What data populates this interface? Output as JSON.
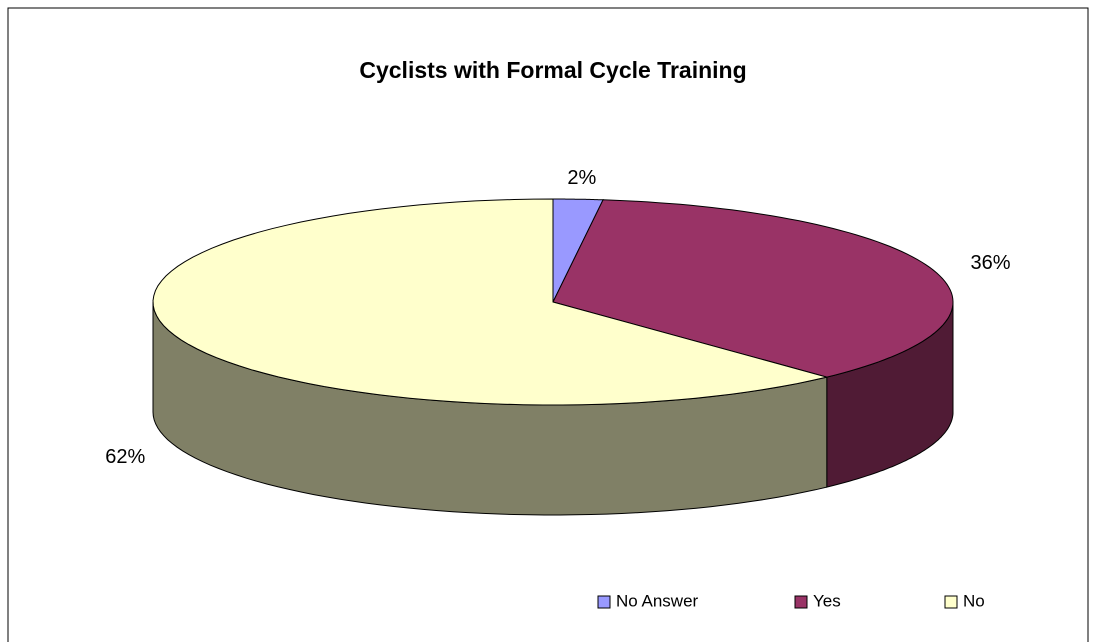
{
  "chart_data": {
    "type": "pie",
    "title": "Cyclists with Formal Cycle Training",
    "categories": [
      "No Answer",
      "Yes",
      "No"
    ],
    "values": [
      2,
      36,
      62
    ],
    "value_labels": [
      "2%",
      "36%",
      "62%"
    ],
    "colors": [
      "#9999ff",
      "#993366",
      "#ffffcc"
    ],
    "legend": "bottom"
  }
}
